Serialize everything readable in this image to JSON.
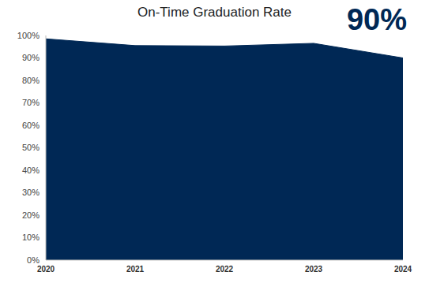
{
  "chart_data": {
    "type": "area",
    "title": "On-Time Graduation Rate",
    "annotation": "90%",
    "categories": [
      "2020",
      "2021",
      "2022",
      "2023",
      "2024"
    ],
    "values": [
      98.5,
      95.5,
      95.3,
      96.5,
      90
    ],
    "color": "#002855",
    "ylim": [
      0,
      100
    ],
    "yticks": [
      {
        "value": 0,
        "label": "0%"
      },
      {
        "value": 10,
        "label": "10%"
      },
      {
        "value": 20,
        "label": "20%"
      },
      {
        "value": 30,
        "label": "30%"
      },
      {
        "value": 40,
        "label": "40%"
      },
      {
        "value": 50,
        "label": "50%"
      },
      {
        "value": 60,
        "label": "60%"
      },
      {
        "value": 70,
        "label": "70%"
      },
      {
        "value": 80,
        "label": "80%"
      },
      {
        "value": 90,
        "label": "90%"
      },
      {
        "value": 100,
        "label": "100%"
      }
    ],
    "grid": false
  }
}
